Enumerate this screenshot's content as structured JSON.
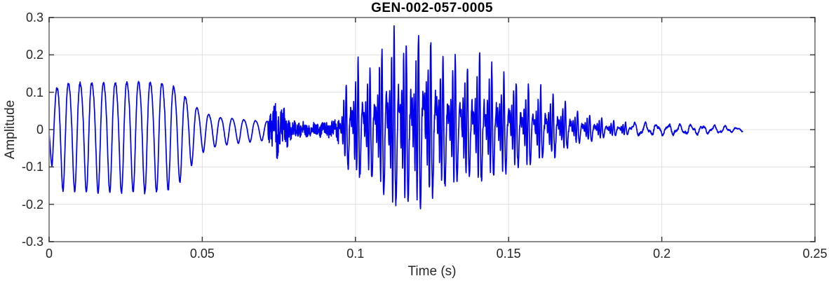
{
  "chart_data": {
    "type": "line",
    "title": "GEN-002-057-0005",
    "xlabel": "Time (s)",
    "ylabel": "Amplitude",
    "xlim": [
      0,
      0.25
    ],
    "ylim": [
      -0.3,
      0.3
    ],
    "x_ticks": [
      "0",
      "0.05",
      "0.1",
      "0.15",
      "0.2",
      "0.25"
    ],
    "y_ticks": [
      "-0.3",
      "-0.2",
      "-0.1",
      "0",
      "0.1",
      "0.2",
      "0.3"
    ],
    "grid": true,
    "legend": "none",
    "colors": {
      "line": "#0000EE",
      "box": "#8C8C8C",
      "grid": "#E0E0E0",
      "tick": "#3D3D3D",
      "tick_text": "#262626",
      "title_text": "#000000",
      "background": "#FFFFFF"
    },
    "signal": {
      "description": "speech-like audio waveform: steady ~262 Hz tone burst, quiet decay, short noise burst, loud complex voiced section peaking near t=0.115 s, decaying ripple tail",
      "t_end": 0.2264,
      "sample_rate_hz": 16000,
      "max_amplitude": 0.285,
      "min_amplitude": -0.22,
      "envelope": [
        [
          0,
          0.03
        ],
        [
          0.001,
          0.1
        ],
        [
          0.003,
          0.145
        ],
        [
          0.008,
          0.15
        ],
        [
          0.02,
          0.152
        ],
        [
          0.032,
          0.155
        ],
        [
          0.038,
          0.15
        ],
        [
          0.042,
          0.135
        ],
        [
          0.046,
          0.09
        ],
        [
          0.05,
          0.055
        ],
        [
          0.055,
          0.04
        ],
        [
          0.062,
          0.033
        ],
        [
          0.068,
          0.028
        ],
        [
          0.0715,
          0.026
        ],
        [
          0.072,
          0.05
        ],
        [
          0.074,
          0.075
        ],
        [
          0.076,
          0.06
        ],
        [
          0.079,
          0.03
        ],
        [
          0.0805,
          0.022
        ],
        [
          0.085,
          0.018
        ],
        [
          0.089,
          0.02
        ],
        [
          0.0925,
          0.022
        ],
        [
          0.094,
          0.035
        ],
        [
          0.096,
          0.1
        ],
        [
          0.0985,
          0.17
        ],
        [
          0.101,
          0.19
        ],
        [
          0.1035,
          0.155
        ],
        [
          0.106,
          0.19
        ],
        [
          0.109,
          0.23
        ],
        [
          0.112,
          0.26
        ],
        [
          0.1145,
          0.285
        ],
        [
          0.117,
          0.255
        ],
        [
          0.1195,
          0.265
        ],
        [
          0.1225,
          0.28
        ],
        [
          0.125,
          0.245
        ],
        [
          0.128,
          0.215
        ],
        [
          0.131,
          0.2
        ],
        [
          0.134,
          0.19
        ],
        [
          0.137,
          0.175
        ],
        [
          0.14,
          0.195
        ],
        [
          0.143,
          0.185
        ],
        [
          0.146,
          0.165
        ],
        [
          0.149,
          0.15
        ],
        [
          0.152,
          0.14
        ],
        [
          0.155,
          0.13
        ],
        [
          0.1585,
          0.115
        ],
        [
          0.162,
          0.105
        ],
        [
          0.1655,
          0.095
        ],
        [
          0.168,
          0.075
        ],
        [
          0.172,
          0.052
        ],
        [
          0.176,
          0.046
        ],
        [
          0.18,
          0.032
        ],
        [
          0.185,
          0.023
        ],
        [
          0.19,
          0.017
        ],
        [
          0.196,
          0.014
        ],
        [
          0.203,
          0.013
        ],
        [
          0.21,
          0.012
        ],
        [
          0.216,
          0.01
        ],
        [
          0.221,
          0.008
        ],
        [
          0.2264,
          0.004
        ]
      ],
      "segments": [
        {
          "t0": 0.0,
          "t1": 0.0715,
          "kind": "tone",
          "f0": 262
        },
        {
          "t0": 0.0715,
          "t1": 0.0795,
          "kind": "noise",
          "f0": 0
        },
        {
          "t0": 0.0795,
          "t1": 0.0945,
          "kind": "noise",
          "f0": 0
        },
        {
          "t0": 0.0945,
          "t1": 0.19,
          "kind": "voiced",
          "f0": 253
        },
        {
          "t0": 0.19,
          "t1": 0.2264,
          "kind": "ripple",
          "f0": 268
        }
      ]
    }
  }
}
